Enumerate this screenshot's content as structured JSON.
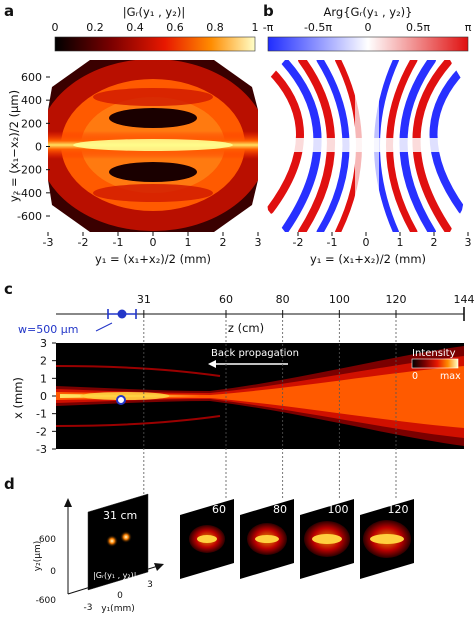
{
  "panel_a": {
    "letter": "a",
    "colorbar_title": "|Gᵣ(y₁ , y₂)|",
    "colorbar_ticks": [
      "0",
      "0.2",
      "0.4",
      "0.6",
      "0.8",
      "1"
    ],
    "y_ticks": [
      "600",
      "400",
      "200",
      "0",
      "-200",
      "-400",
      "-600"
    ],
    "x_ticks": [
      "-3",
      "-2",
      "-1",
      "0",
      "1",
      "2",
      "3"
    ],
    "ylabel": "y₂ = (x₁−x₂)/2 (μm)",
    "xlabel": "y₁ = (x₁+x₂)/2 (mm)"
  },
  "panel_b": {
    "letter": "b",
    "colorbar_title": "Arg{Gᵣ(y₁ , y₂)}",
    "colorbar_ticks": [
      "-π",
      "-0.5π",
      "0",
      "0.5π",
      "π"
    ],
    "x_ticks": [
      "-2",
      "-1",
      "0",
      "1",
      "2",
      "3"
    ],
    "xlabel": "y₁ = (x₁+x₂)/2 (mm)"
  },
  "panel_c": {
    "letter": "c",
    "z_ticks": [
      "31",
      "60",
      "80",
      "100",
      "120",
      "144"
    ],
    "z_values": [
      31,
      60,
      80,
      100,
      120,
      144
    ],
    "z_label": "z (cm)",
    "waist_label": "w=500 μm",
    "arrow_label": "Back propagation",
    "x_ticks": [
      "3",
      "2",
      "1",
      "0",
      "-1",
      "-2",
      "-3"
    ],
    "xlabel": "x (mm)",
    "legend_title": "Intensity",
    "legend_min": "0",
    "legend_max": "max"
  },
  "panel_d": {
    "letter": "d",
    "slice_labels": [
      "31 cm",
      "60",
      "80",
      "100",
      "120"
    ],
    "function_label": "|Gᵣ(y₁ , y₂)|",
    "y2_label": "y₂(μm)",
    "y1_label": "y₁(mm)",
    "y2_ticks": [
      "600",
      "0",
      "-600"
    ],
    "y1_ticks": [
      "-3",
      "0",
      "3"
    ]
  },
  "colors": {
    "heat_dark": "#000000",
    "heat_red": "#b00000",
    "heat_orange": "#ff5a00",
    "heat_yellow": "#ffff80",
    "phase_blue": "#2830ff",
    "phase_red": "#e01010",
    "marker_blue": "#2236c8"
  }
}
